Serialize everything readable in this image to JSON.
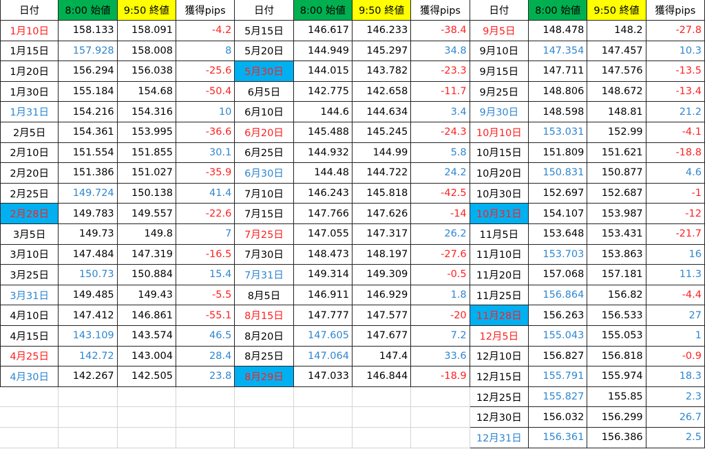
{
  "headers": [
    "日付",
    "8:00 始値",
    "9:50 終値",
    "獲得pips"
  ],
  "header_fills": [
    "#ffffff",
    "#00b050",
    "#ffff00",
    "#ffffff"
  ],
  "blocks": [
    {
      "rows": [
        {
          "date": "1月10日",
          "date_color": "red",
          "open": "158.133",
          "close": "158.091",
          "pips": "-4.2"
        },
        {
          "date": "1月15日",
          "open": "157.928",
          "open_color": "blue",
          "close": "158.008",
          "pips": "8"
        },
        {
          "date": "1月20日",
          "open": "156.294",
          "close": "156.038",
          "pips": "-25.6"
        },
        {
          "date": "1月30日",
          "open": "155.184",
          "close": "154.68",
          "pips": "-50.4"
        },
        {
          "date": "1月31日",
          "date_color": "blue",
          "open": "154.216",
          "close": "154.316",
          "pips": "10"
        },
        {
          "date": "2月5日",
          "open": "154.361",
          "close": "153.995",
          "pips": "-36.6"
        },
        {
          "date": "2月10日",
          "open": "151.554",
          "close": "151.855",
          "pips": "30.1"
        },
        {
          "date": "2月20日",
          "open": "151.386",
          "close": "151.027",
          "pips": "-35.9"
        },
        {
          "date": "2月25日",
          "open": "149.724",
          "open_color": "blue",
          "close": "150.138",
          "pips": "41.4"
        },
        {
          "date": "2月28日",
          "date_color": "red",
          "date_fill": "#00b0f0",
          "open": "149.783",
          "close": "149.557",
          "pips": "-22.6"
        },
        {
          "date": "3月5日",
          "open": "149.73",
          "close": "149.8",
          "pips": "7"
        },
        {
          "date": "3月10日",
          "open": "147.484",
          "close": "147.319",
          "pips": "-16.5"
        },
        {
          "date": "3月25日",
          "open": "150.73",
          "open_color": "blue",
          "close": "150.884",
          "pips": "15.4"
        },
        {
          "date": "3月31日",
          "date_color": "blue",
          "open": "149.485",
          "close": "149.43",
          "pips": "-5.5"
        },
        {
          "date": "4月10日",
          "open": "147.412",
          "close": "146.861",
          "pips": "-55.1"
        },
        {
          "date": "4月15日",
          "open": "143.109",
          "open_color": "blue",
          "close": "143.574",
          "pips": "46.5"
        },
        {
          "date": "4月25日",
          "date_color": "red",
          "open": "142.72",
          "open_color": "blue",
          "close": "143.004",
          "pips": "28.4"
        },
        {
          "date": "4月30日",
          "date_color": "blue",
          "open": "142.267",
          "close": "142.505",
          "pips": "23.8"
        }
      ]
    },
    {
      "rows": [
        {
          "date": "5月15日",
          "open": "146.617",
          "close": "146.233",
          "pips": "-38.4"
        },
        {
          "date": "5月20日",
          "open": "144.949",
          "close": "145.297",
          "pips": "34.8"
        },
        {
          "date": "5月30日",
          "date_color": "red",
          "date_fill": "#00b0f0",
          "open": "144.015",
          "close": "143.782",
          "pips": "-23.3"
        },
        {
          "date": "6月5日",
          "open": "142.775",
          "close": "142.658",
          "pips": "-11.7"
        },
        {
          "date": "6月10日",
          "open": "144.6",
          "close": "144.634",
          "pips": "3.4"
        },
        {
          "date": "6月20日",
          "date_color": "red",
          "open": "145.488",
          "close": "145.245",
          "pips": "-24.3"
        },
        {
          "date": "6月25日",
          "open": "144.932",
          "close": "144.99",
          "pips": "5.8"
        },
        {
          "date": "6月30日",
          "date_color": "blue",
          "open": "144.48",
          "close": "144.722",
          "pips": "24.2"
        },
        {
          "date": "7月10日",
          "open": "146.243",
          "close": "145.818",
          "pips": "-42.5"
        },
        {
          "date": "7月15日",
          "open": "147.766",
          "close": "147.626",
          "pips": "-14"
        },
        {
          "date": "7月25日",
          "date_color": "red",
          "open": "147.055",
          "close": "147.317",
          "pips": "26.2"
        },
        {
          "date": "7月30日",
          "open": "148.473",
          "close": "148.197",
          "pips": "-27.6"
        },
        {
          "date": "7月31日",
          "date_color": "blue",
          "open": "149.314",
          "close": "149.309",
          "pips": "-0.5"
        },
        {
          "date": "8月5日",
          "open": "146.911",
          "close": "146.929",
          "pips": "1.8"
        },
        {
          "date": "8月15日",
          "date_color": "red",
          "open": "147.777",
          "close": "147.577",
          "pips": "-20"
        },
        {
          "date": "8月20日",
          "open": "147.605",
          "open_color": "blue",
          "close": "147.677",
          "pips": "7.2"
        },
        {
          "date": "8月25日",
          "open": "147.064",
          "open_color": "blue",
          "close": "147.4",
          "pips": "33.6"
        },
        {
          "date": "8月29日",
          "date_color": "red",
          "date_fill": "#00b0f0",
          "open": "147.033",
          "close": "146.844",
          "pips": "-18.9"
        }
      ]
    },
    {
      "rows": [
        {
          "date": "9月5日",
          "date_color": "red",
          "open": "148.478",
          "close": "148.2",
          "pips": "-27.8"
        },
        {
          "date": "9月10日",
          "open": "147.354",
          "open_color": "blue",
          "close": "147.457",
          "pips": "10.3"
        },
        {
          "date": "9月15日",
          "open": "147.711",
          "close": "147.576",
          "pips": "-13.5"
        },
        {
          "date": "9月25日",
          "open": "148.806",
          "close": "148.672",
          "pips": "-13.4"
        },
        {
          "date": "9月30日",
          "date_color": "blue",
          "open": "148.598",
          "close": "148.81",
          "pips": "21.2"
        },
        {
          "date": "10月10日",
          "date_color": "red",
          "open": "153.031",
          "open_color": "blue",
          "close": "152.99",
          "pips": "-4.1"
        },
        {
          "date": "10月15日",
          "open": "151.809",
          "close": "151.621",
          "pips": "-18.8"
        },
        {
          "date": "10月20日",
          "open": "150.831",
          "open_color": "blue",
          "close": "150.877",
          "pips": "4.6"
        },
        {
          "date": "10月30日",
          "open": "152.697",
          "close": "152.687",
          "pips": "-1"
        },
        {
          "date": "10月31日",
          "date_color": "red",
          "date_fill": "#00b0f0",
          "open": "154.107",
          "close": "153.987",
          "pips": "-12"
        },
        {
          "date": "11月5日",
          "open": "153.648",
          "close": "153.431",
          "pips": "-21.7"
        },
        {
          "date": "11月10日",
          "open": "153.703",
          "open_color": "blue",
          "close": "153.863",
          "pips": "16"
        },
        {
          "date": "11月20日",
          "open": "157.068",
          "close": "157.181",
          "pips": "11.3"
        },
        {
          "date": "11月25日",
          "open": "156.864",
          "open_color": "blue",
          "close": "156.82",
          "pips": "-4.4"
        },
        {
          "date": "11月28日",
          "date_color": "red",
          "date_fill": "#00b0f0",
          "open": "156.263",
          "close": "156.533",
          "pips": "27"
        },
        {
          "date": "12月5日",
          "date_color": "red",
          "open": "155.043",
          "open_color": "blue",
          "close": "155.053",
          "pips": "1"
        },
        {
          "date": "12月10日",
          "open": "156.827",
          "close": "156.818",
          "pips": "-0.9"
        },
        {
          "date": "12月15日",
          "open": "155.791",
          "open_color": "blue",
          "close": "155.974",
          "pips": "18.3"
        },
        {
          "date": "12月25日",
          "open": "155.827",
          "open_color": "blue",
          "close": "155.85",
          "pips": "2.3"
        },
        {
          "date": "12月30日",
          "open": "156.032",
          "close": "156.299",
          "pips": "26.7"
        },
        {
          "date": "12月31日",
          "date_color": "blue",
          "open": "156.361",
          "open_color": "blue",
          "close": "156.386",
          "pips": "2.5"
        }
      ]
    }
  ]
}
